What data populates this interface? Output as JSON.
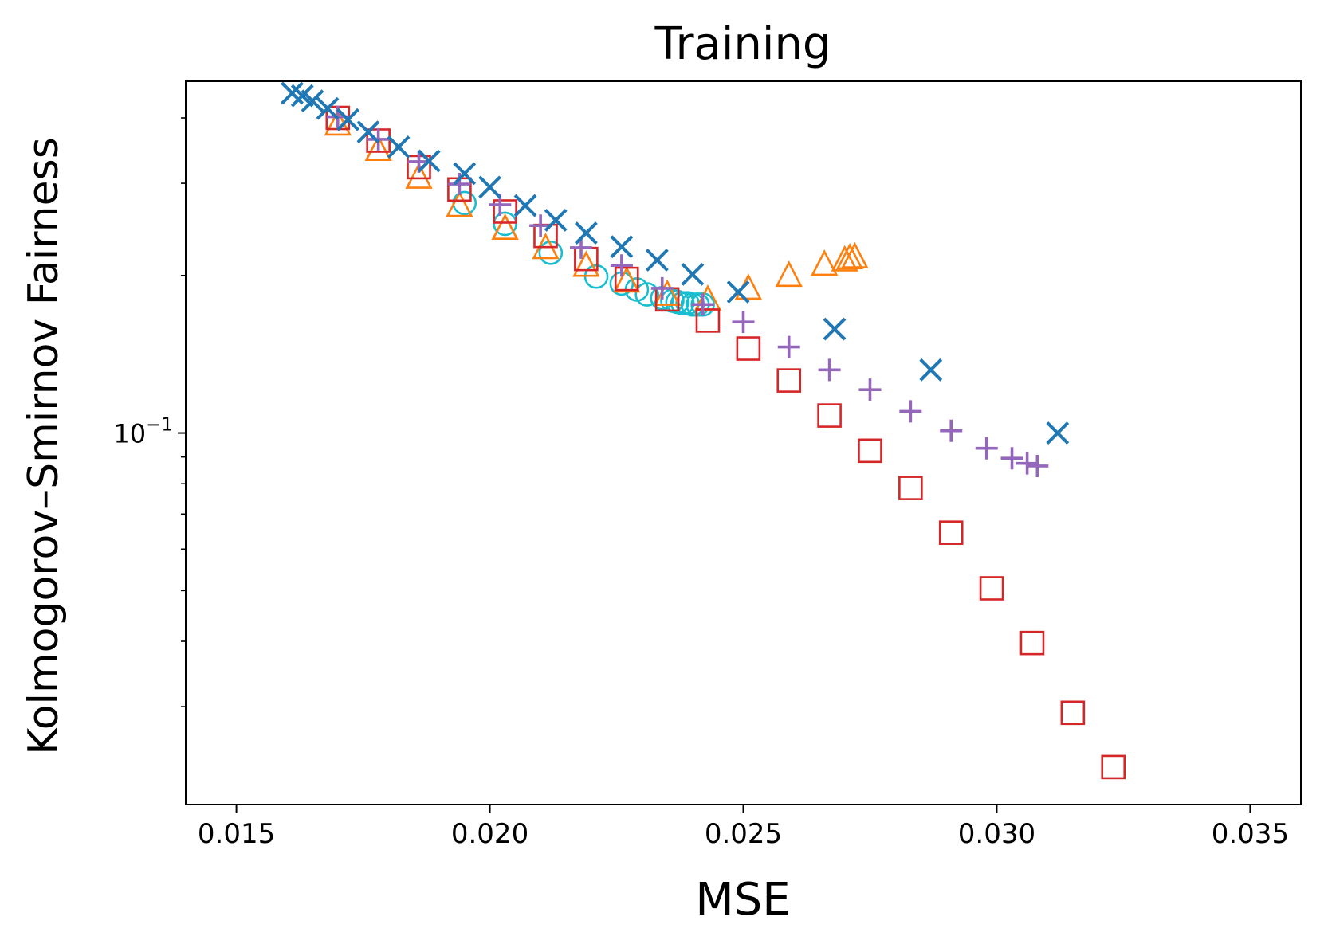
{
  "chart_data": {
    "type": "scatter",
    "title": "Training",
    "xlabel": "MSE",
    "ylabel": "Kolmogorov–Smirnov Fairness",
    "xlim": [
      0.014,
      0.036
    ],
    "ylim": [
      0.0195,
      0.47
    ],
    "yscale": "log",
    "xticks": [
      0.015,
      0.02,
      0.025,
      0.03,
      0.035
    ],
    "xtick_labels": [
      "0.015",
      "0.020",
      "0.025",
      "0.030",
      "0.035"
    ],
    "ytick_major": [
      0.1
    ],
    "ytick_major_label_base": "10",
    "ytick_major_label_exp": "−1",
    "ytick_minor": [
      0.03,
      0.04,
      0.05,
      0.06,
      0.07,
      0.08,
      0.09,
      0.2,
      0.3,
      0.4
    ],
    "series": [
      {
        "name": "circle-series",
        "marker": "circle",
        "color": "#17becf",
        "points": [
          [
            0.0195,
            0.275
          ],
          [
            0.0203,
            0.251
          ],
          [
            0.0212,
            0.221
          ],
          [
            0.0221,
            0.199
          ],
          [
            0.0226,
            0.193
          ],
          [
            0.0229,
            0.188
          ],
          [
            0.0231,
            0.184
          ],
          [
            0.0234,
            0.181
          ],
          [
            0.0236,
            0.179
          ],
          [
            0.0237,
            0.178
          ],
          [
            0.0238,
            0.177
          ],
          [
            0.0239,
            0.177
          ],
          [
            0.024,
            0.176
          ],
          [
            0.0241,
            0.176
          ],
          [
            0.0242,
            0.176
          ]
        ]
      },
      {
        "name": "triangle-series",
        "marker": "triangle",
        "color": "#ff7f0e",
        "points": [
          [
            0.017,
            0.389
          ],
          [
            0.0178,
            0.348
          ],
          [
            0.0186,
            0.308
          ],
          [
            0.0194,
            0.272
          ],
          [
            0.0203,
            0.246
          ],
          [
            0.0211,
            0.226
          ],
          [
            0.0219,
            0.209
          ],
          [
            0.0227,
            0.195
          ],
          [
            0.0235,
            0.184
          ],
          [
            0.0243,
            0.18
          ],
          [
            0.0251,
            0.189
          ],
          [
            0.0259,
            0.2
          ],
          [
            0.0266,
            0.21
          ],
          [
            0.027,
            0.214
          ],
          [
            0.0271,
            0.216
          ],
          [
            0.0272,
            0.217
          ]
        ]
      },
      {
        "name": "square-series",
        "marker": "square",
        "color": "#d62728",
        "points": [
          [
            0.017,
            0.4
          ],
          [
            0.0178,
            0.362
          ],
          [
            0.0186,
            0.322
          ],
          [
            0.0194,
            0.292
          ],
          [
            0.0203,
            0.265
          ],
          [
            0.0211,
            0.238
          ],
          [
            0.0219,
            0.215
          ],
          [
            0.0227,
            0.197
          ],
          [
            0.0235,
            0.18
          ],
          [
            0.0243,
            0.164
          ],
          [
            0.0251,
            0.145
          ],
          [
            0.0259,
            0.126
          ],
          [
            0.0267,
            0.108
          ],
          [
            0.0275,
            0.0925
          ],
          [
            0.0283,
            0.0785
          ],
          [
            0.0291,
            0.0645
          ],
          [
            0.0299,
            0.0505
          ],
          [
            0.0307,
            0.0397
          ],
          [
            0.0315,
            0.0292
          ],
          [
            0.0323,
            0.023
          ]
        ]
      },
      {
        "name": "plus-series",
        "marker": "plus",
        "color": "#9467bd",
        "points": [
          [
            0.017,
            0.402
          ],
          [
            0.0178,
            0.364
          ],
          [
            0.0186,
            0.33
          ],
          [
            0.0194,
            0.299
          ],
          [
            0.0202,
            0.273
          ],
          [
            0.021,
            0.249
          ],
          [
            0.0218,
            0.226
          ],
          [
            0.0226,
            0.209
          ],
          [
            0.0234,
            0.189
          ],
          [
            0.0242,
            0.176
          ],
          [
            0.025,
            0.163
          ],
          [
            0.0259,
            0.146
          ],
          [
            0.0267,
            0.132
          ],
          [
            0.0275,
            0.121
          ],
          [
            0.0283,
            0.11
          ],
          [
            0.0291,
            0.101
          ],
          [
            0.0298,
            0.0935
          ],
          [
            0.0303,
            0.0895
          ],
          [
            0.0306,
            0.0875
          ],
          [
            0.0308,
            0.0865
          ]
        ]
      },
      {
        "name": "x-series",
        "marker": "x",
        "color": "#1f77b4",
        "points": [
          [
            0.0161,
            0.446
          ],
          [
            0.0163,
            0.441
          ],
          [
            0.0165,
            0.431
          ],
          [
            0.0168,
            0.417
          ],
          [
            0.0172,
            0.397
          ],
          [
            0.0176,
            0.376
          ],
          [
            0.0182,
            0.352
          ],
          [
            0.0188,
            0.331
          ],
          [
            0.0195,
            0.313
          ],
          [
            0.02,
            0.295
          ],
          [
            0.0207,
            0.272
          ],
          [
            0.0213,
            0.255
          ],
          [
            0.0219,
            0.241
          ],
          [
            0.0226,
            0.227
          ],
          [
            0.0233,
            0.214
          ],
          [
            0.024,
            0.201
          ],
          [
            0.0249,
            0.186
          ],
          [
            0.0268,
            0.158
          ],
          [
            0.0287,
            0.132
          ],
          [
            0.0312,
            0.1
          ]
        ]
      }
    ]
  }
}
